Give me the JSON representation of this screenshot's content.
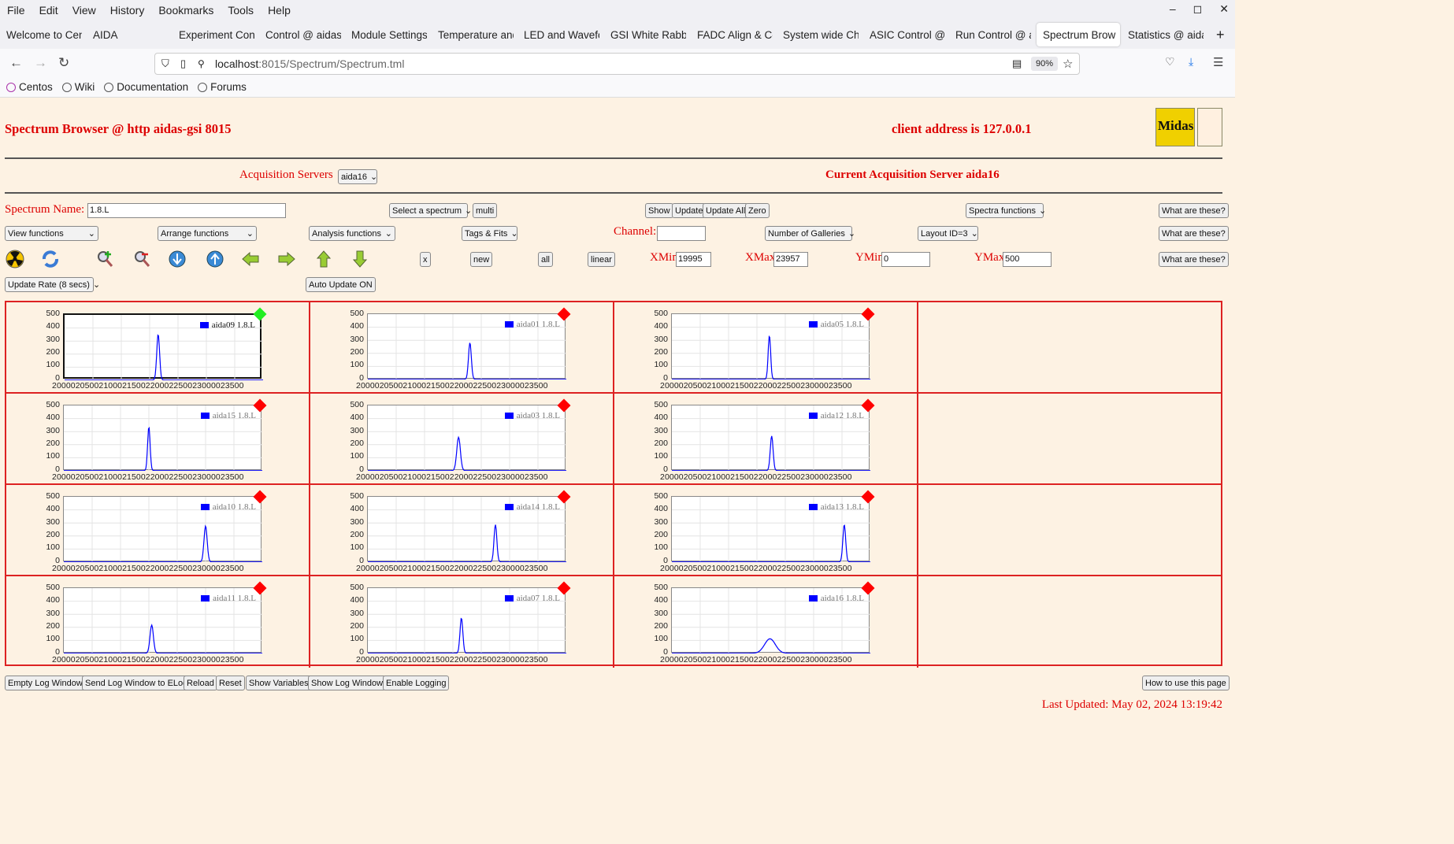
{
  "menu": [
    "File",
    "Edit",
    "View",
    "History",
    "Bookmarks",
    "Tools",
    "Help"
  ],
  "tabs": [
    "Welcome to Cen",
    "AIDA",
    "Experiment Cont",
    "Control @ aidas",
    "Module Settings",
    "Temperature and",
    "LED and Wavefo",
    "GSI White Rabbi",
    "FADC Align & Co",
    "System wide Ch",
    "ASIC Control @",
    "Run Control @ a",
    "Spectrum Brow",
    "Statistics @ aida"
  ],
  "active_tab_index": 12,
  "url_host": "localhost",
  "url_rest": ":8015/Spectrum/Spectrum.tml",
  "zoom": "90%",
  "bookmarks": [
    "Centos",
    "Wiki",
    "Documentation",
    "Forums"
  ],
  "header": {
    "title": "Spectrum Browser @ http aidas-gsi 8015",
    "client": "client address is 127.0.0.1",
    "logo_text": "Midas"
  },
  "acq": {
    "label": "Acquisition Servers",
    "server_select": "aida16",
    "current": "Current Acquisition Server aida16"
  },
  "controls": {
    "spectrum_name_label": "Spectrum Name:",
    "spectrum_name": "1.8.L",
    "select_spectrum": "Select a spectrum",
    "multi": "multi",
    "show": "Show",
    "update": "Update",
    "update_all": "Update All",
    "zero": "Zero",
    "spectra_functions": "Spectra functions",
    "what": "What are these?",
    "view_functions": "View functions",
    "arrange_functions": "Arrange functions",
    "analysis_functions": "Analysis functions",
    "tags_fits": "Tags & Fits",
    "channel_label": "Channel:",
    "channel": "",
    "galleries": "Number of Galleries",
    "layout": "Layout ID=3",
    "x": "x",
    "new": "new",
    "all": "all",
    "linear": "linear",
    "xmin_label": "XMin",
    "xmin": "19995",
    "xmax_label": "XMax",
    "xmax": "23957",
    "ymin_label": "YMin",
    "ymin": "0",
    "ymax_label": "YMax",
    "ymax": "500",
    "update_rate": "Update Rate (8 secs)",
    "auto_update": "Auto Update ON"
  },
  "y_ticks": [
    "500",
    "400",
    "300",
    "200",
    "100",
    "0"
  ],
  "x_axis_text": "20000205002100021500220002250023000023500",
  "x_ticks": [
    "20000",
    "20500",
    "21000",
    "21500",
    "22000",
    "22500",
    "23000",
    "23500"
  ],
  "chart_data": {
    "type": "line",
    "xlim": [
      20000,
      23500
    ],
    "ylim": [
      0,
      500
    ],
    "panels": [
      {
        "name": "aida09 1.8.L",
        "peak_x": 21650,
        "peak_y": 350,
        "width": 25,
        "status": "green",
        "selected": true
      },
      {
        "name": "aida01 1.8.L",
        "peak_x": 21800,
        "peak_y": 280,
        "width": 25,
        "status": "red"
      },
      {
        "name": "aida05 1.8.L",
        "peak_x": 21720,
        "peak_y": 335,
        "width": 22,
        "status": "red"
      },
      {
        "name": "aida15 1.8.L",
        "peak_x": 21500,
        "peak_y": 335,
        "width": 22,
        "status": "red"
      },
      {
        "name": "aida03 1.8.L",
        "peak_x": 21600,
        "peak_y": 255,
        "width": 32,
        "status": "red"
      },
      {
        "name": "aida12 1.8.L",
        "peak_x": 21760,
        "peak_y": 265,
        "width": 25,
        "status": "red"
      },
      {
        "name": "aida10 1.8.L",
        "peak_x": 22500,
        "peak_y": 275,
        "width": 28,
        "status": "red"
      },
      {
        "name": "aida14 1.8.L",
        "peak_x": 22250,
        "peak_y": 285,
        "width": 25,
        "status": "red"
      },
      {
        "name": "aida13 1.8.L",
        "peak_x": 23040,
        "peak_y": 285,
        "width": 25,
        "status": "red"
      },
      {
        "name": "aida11 1.8.L",
        "peak_x": 21550,
        "peak_y": 215,
        "width": 30,
        "status": "red"
      },
      {
        "name": "aida07 1.8.L",
        "peak_x": 21650,
        "peak_y": 270,
        "width": 25,
        "status": "red"
      },
      {
        "name": "aida16 1.8.L",
        "peak_x": 21730,
        "peak_y": 110,
        "width": 95,
        "status": "red"
      }
    ]
  },
  "bottom_buttons": [
    "Empty Log Window",
    "Send Log Window to ELog",
    "Reload",
    "Reset",
    "Show Variables",
    "Show Log Window",
    "Enable Logging"
  ],
  "how_to": "How to use this page",
  "last_updated": "Last Updated: May 02, 2024 13:19:42",
  "colors": {
    "accent": "#dd0000",
    "trace": "#0000ff",
    "ok": "#22ee22",
    "bad": "#ff0000",
    "page_bg": "#fdf2e3"
  }
}
